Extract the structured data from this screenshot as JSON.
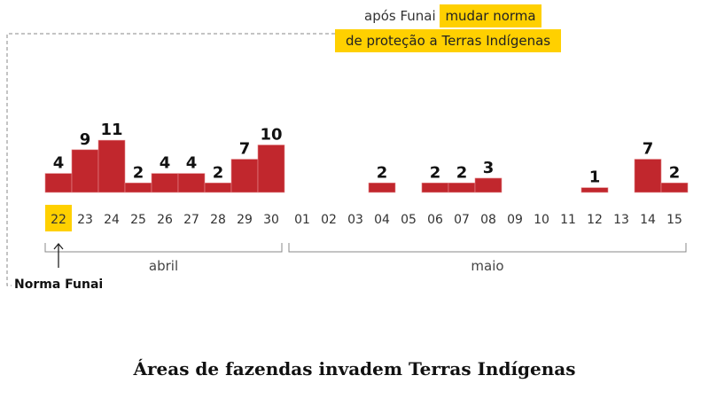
{
  "annotation": {
    "line1_plain": "após Funai",
    "line1_highlight": "mudar norma",
    "line2_highlight": "de proteção a Terras Indígenas",
    "marker_label": "Norma Funai"
  },
  "colors": {
    "bar": "#c1272d",
    "highlight": "#ffd000"
  },
  "chart_data": {
    "type": "bar",
    "title": "Áreas de fazendas invadem Terras Indígenas",
    "groups": [
      {
        "name": "abril",
        "categories": [
          "22",
          "23",
          "24",
          "25",
          "26",
          "27",
          "28",
          "29",
          "30"
        ],
        "values": [
          4,
          9,
          11,
          2,
          4,
          4,
          2,
          7,
          10
        ]
      },
      {
        "name": "maio",
        "categories": [
          "01",
          "02",
          "03",
          "04",
          "05",
          "06",
          "07",
          "08",
          "09",
          "10",
          "11",
          "12",
          "13",
          "14",
          "15"
        ],
        "values": [
          0,
          0,
          0,
          2,
          0,
          2,
          2,
          3,
          0,
          0,
          0,
          1,
          0,
          7,
          2
        ]
      }
    ],
    "highlighted_category": "22",
    "xlabel": "",
    "ylabel": "",
    "grid": false
  }
}
